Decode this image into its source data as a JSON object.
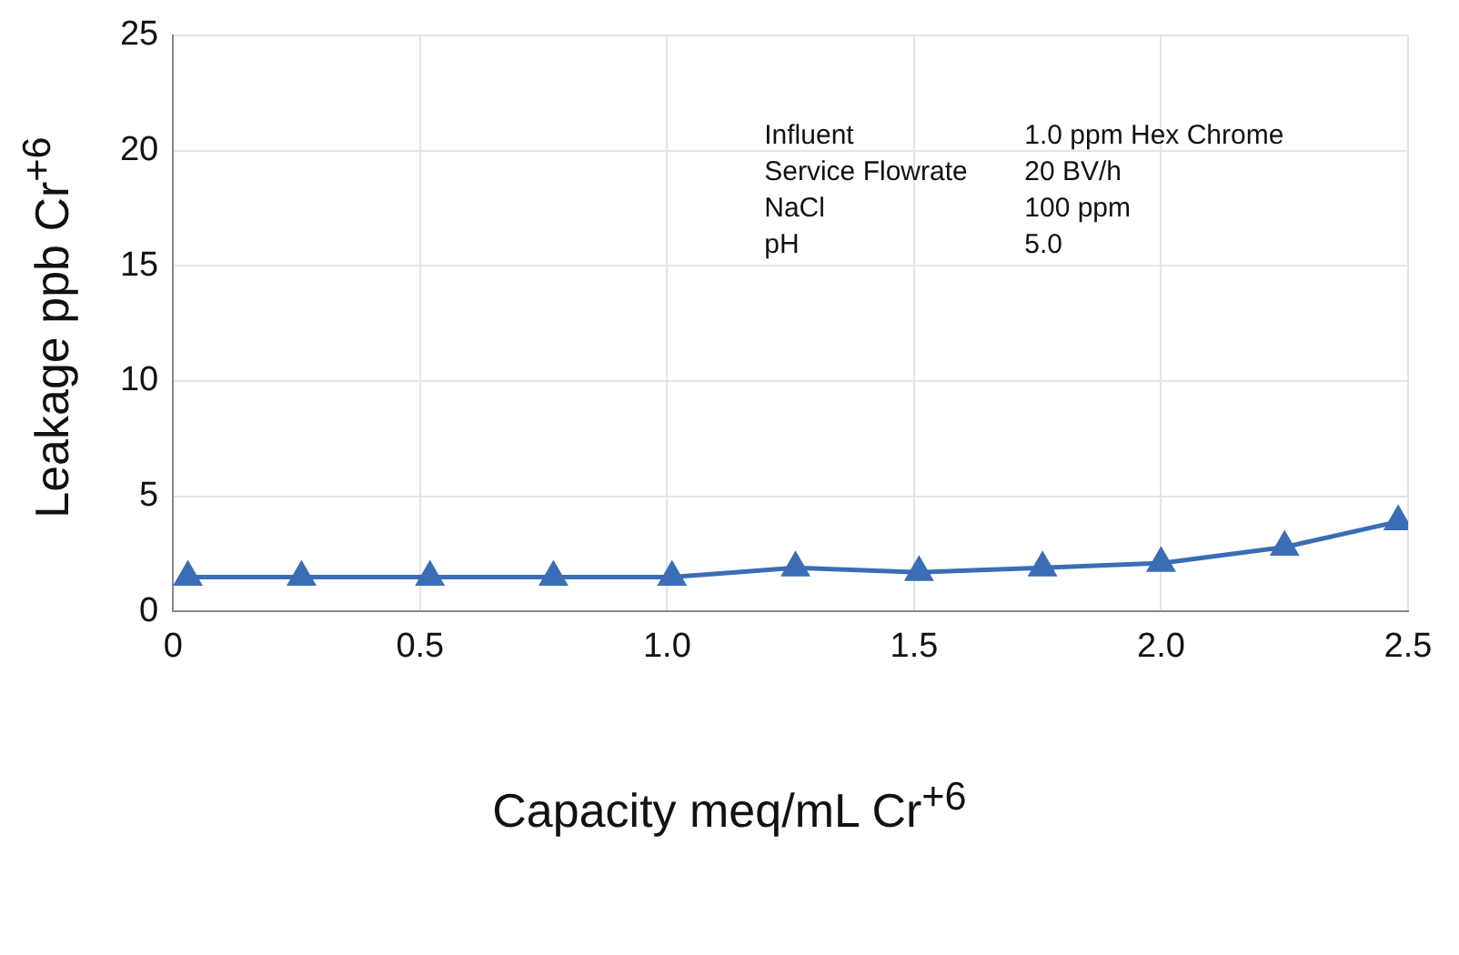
{
  "chart_data": {
    "type": "line",
    "xlabel": "Capacity meq/mL Cr$^{+6}$",
    "ylabel": "Leakage ppb Cr$^{+6}$",
    "series": [
      {
        "color": "#3a6db5",
        "x": [
          0.03,
          0.26,
          0.52,
          0.77,
          1.01,
          1.26,
          1.51,
          1.76,
          2.0,
          2.25,
          2.48
        ],
        "values": [
          1.5,
          1.5,
          1.5,
          1.5,
          1.5,
          1.9,
          1.7,
          1.9,
          2.1,
          2.8,
          3.9
        ]
      }
    ],
    "xlim": [
      0,
      2.5
    ],
    "xticks": [
      0,
      0.5,
      {
        "value": 1,
        "label": "1.0"
      },
      1.5,
      {
        "value": 2,
        "label": "2.0"
      },
      2.5
    ],
    "ylim": [
      0,
      25
    ],
    "yticks": [
      0,
      5,
      10,
      15,
      20,
      25
    ],
    "grid": true,
    "marker": "triangle",
    "line_style": "solid",
    "annotations": [
      "Influent",
      "1.0 ppm Hex Chrome",
      "Service Flowrate",
      "20 BV/h",
      "NaCl",
      "100 ppm",
      "pH",
      "5.0"
    ]
  }
}
